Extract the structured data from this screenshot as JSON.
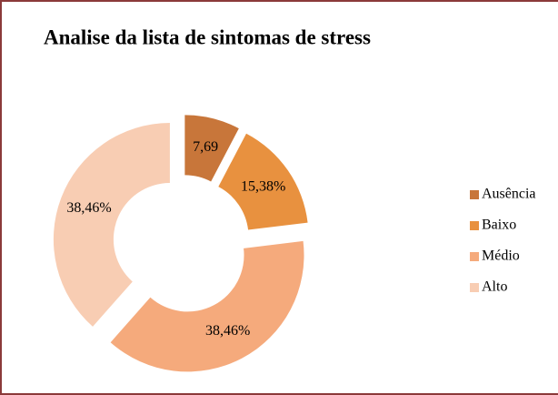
{
  "chart_data": {
    "type": "donut",
    "title": "Analise da lista de sintomas de stress",
    "categories": [
      "Ausência",
      "Baixo",
      "Médio",
      "Alto"
    ],
    "values": [
      7.69,
      15.38,
      38.46,
      38.46
    ],
    "value_labels": [
      "7,69",
      "15,38%",
      "38,46%",
      "38,46%"
    ],
    "colors": [
      "#C8763A",
      "#E8913F",
      "#F5AA7C",
      "#F8CDB3"
    ],
    "legend": "right"
  }
}
